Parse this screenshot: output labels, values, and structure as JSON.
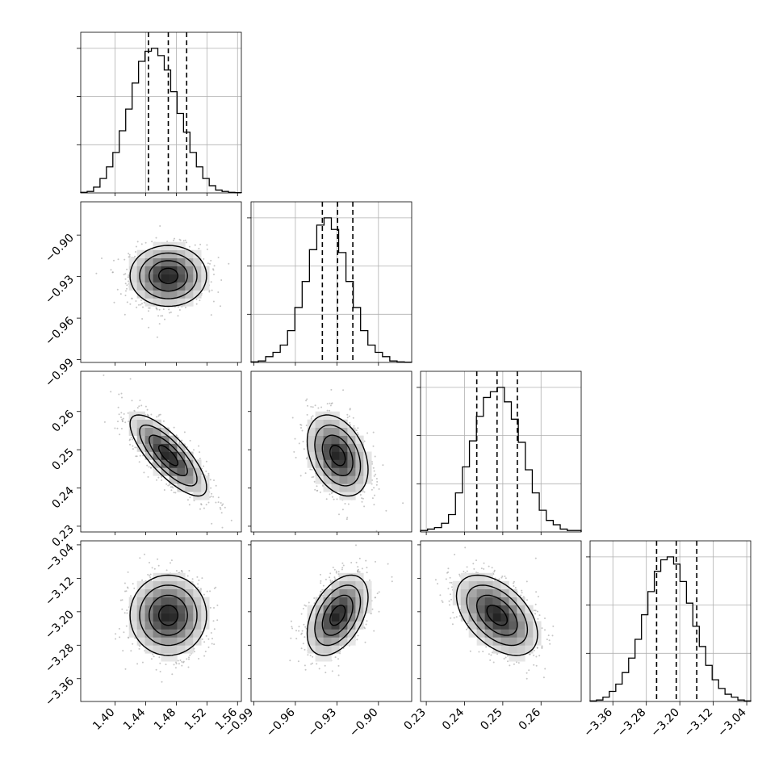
{
  "chart_data": {
    "type": "corner",
    "title": "",
    "params": [
      {
        "xlim": [
          1.355,
          1.565
        ],
        "ticks": [
          1.4,
          1.44,
          1.48,
          1.52,
          1.56
        ],
        "tick_labels": [
          "1.40",
          "1.44",
          "1.48",
          "1.52",
          "1.56"
        ],
        "quantiles": [
          1.4435,
          1.4695,
          1.4935
        ],
        "hist": [
          0.004,
          0.01,
          0.04,
          0.1,
          0.18,
          0.28,
          0.43,
          0.58,
          0.76,
          0.91,
          0.98,
          1.0,
          0.95,
          0.85,
          0.7,
          0.55,
          0.42,
          0.28,
          0.18,
          0.1,
          0.05,
          0.02,
          0.01,
          0.004,
          0.002
        ]
      },
      {
        "xlim": [
          -0.992,
          -0.876
        ],
        "ticks": [
          -0.99,
          -0.96,
          -0.93,
          -0.9
        ],
        "tick_labels": [
          "−0.99",
          "−0.96",
          "−0.93",
          "−0.90"
        ],
        "quantiles": [
          -0.9405,
          -0.9295,
          -0.9185
        ],
        "hist": [
          0.004,
          0.01,
          0.04,
          0.07,
          0.12,
          0.22,
          0.38,
          0.56,
          0.78,
          0.95,
          1.0,
          0.92,
          0.76,
          0.56,
          0.38,
          0.22,
          0.12,
          0.07,
          0.04,
          0.01,
          0.004,
          0.002
        ]
      },
      {
        "xlim": [
          0.2285,
          0.2705
        ],
        "ticks": [
          0.23,
          0.24,
          0.25,
          0.26
        ],
        "tick_labels": [
          "0.23",
          "0.24",
          "0.25",
          "0.26"
        ],
        "quantiles": [
          0.2432,
          0.2485,
          0.2538
        ],
        "hist": [
          0.01,
          0.02,
          0.03,
          0.06,
          0.12,
          0.27,
          0.45,
          0.63,
          0.8,
          0.93,
          0.97,
          1.0,
          0.9,
          0.78,
          0.62,
          0.43,
          0.27,
          0.15,
          0.08,
          0.05,
          0.02,
          0.01,
          0.01
        ]
      },
      {
        "xlim": [
          -3.4145,
          -3.0305
        ],
        "ticks": [
          -3.36,
          -3.28,
          -3.2,
          -3.12,
          -3.04
        ],
        "tick_labels": [
          "−3.36",
          "−3.28",
          "−3.20",
          "−3.12",
          "−3.04"
        ],
        "quantiles": [
          -3.2555,
          -3.2085,
          -3.1595
        ],
        "hist": [
          0.004,
          0.01,
          0.03,
          0.07,
          0.12,
          0.2,
          0.3,
          0.43,
          0.6,
          0.76,
          0.9,
          0.98,
          1.0,
          0.95,
          0.83,
          0.68,
          0.52,
          0.38,
          0.25,
          0.15,
          0.09,
          0.05,
          0.03,
          0.01,
          0.004
        ]
      }
    ],
    "pairs": [
      {
        "row": 1,
        "col": 0,
        "rho": 0.0
      },
      {
        "row": 2,
        "col": 0,
        "rho": -0.78
      },
      {
        "row": 2,
        "col": 1,
        "rho": -0.35
      },
      {
        "row": 3,
        "col": 0,
        "rho": 0.0
      },
      {
        "row": 3,
        "col": 1,
        "rho": 0.45
      },
      {
        "row": 3,
        "col": 2,
        "rho": -0.48
      }
    ],
    "contour_levels": [
      0.5,
      1.0,
      1.5,
      2.0
    ],
    "scatter_color": "#a0a0a0",
    "line_color": "#000000",
    "grid": true
  }
}
